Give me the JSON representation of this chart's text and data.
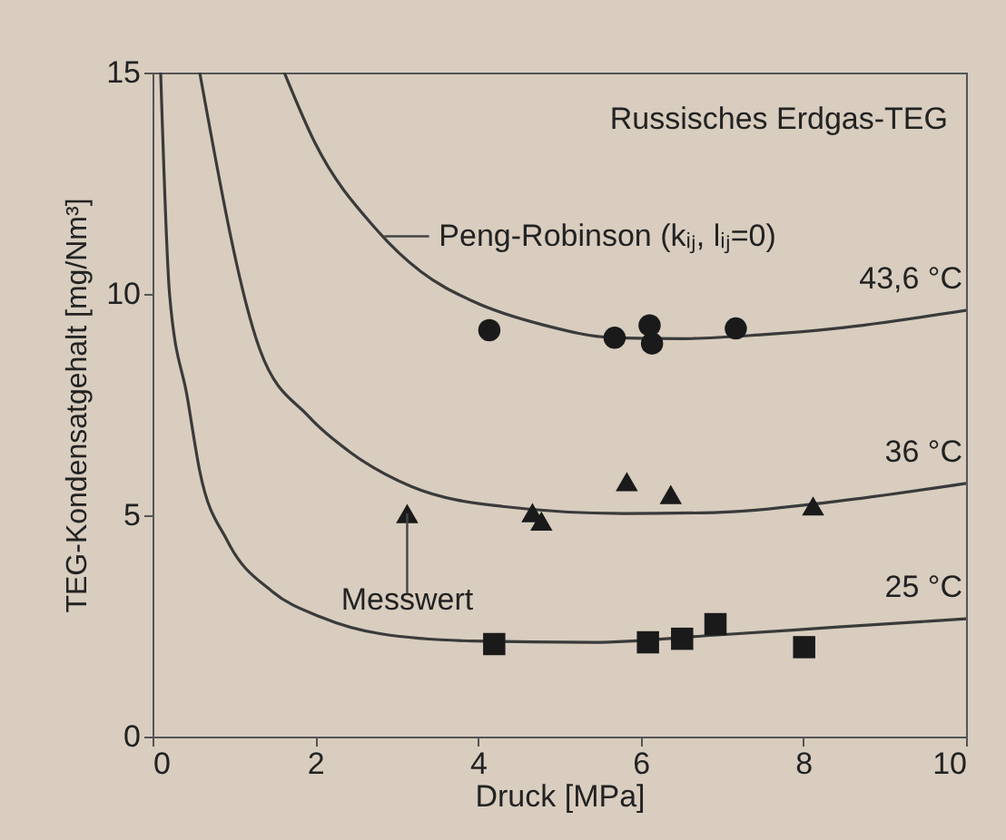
{
  "chart_data": {
    "type": "line",
    "xlabel": "Druck [MPa]",
    "ylabel": "TEG-Kondensatgehalt [mg/Nm³]",
    "xlim": [
      0,
      10
    ],
    "ylim": [
      0,
      15
    ],
    "xticks": [
      0,
      2,
      4,
      6,
      8,
      10
    ],
    "yticks": [
      0,
      5,
      10,
      15
    ],
    "grid": false,
    "line_style": "solid",
    "annotations": [
      "Russisches Erdgas-TEG",
      {
        "text": "Peng-Robinson (kᵢⱼ, lᵢⱼ=0)",
        "x": 2.85,
        "y": 11.3
      },
      {
        "text": "Messwert",
        "x": 3.13,
        "y": 5.04
      }
    ],
    "series": [
      {
        "name": "43,6 °C",
        "color": "#3a3a3a",
        "marker": "none",
        "x": [
          1.62,
          2.0,
          2.74,
          3.3,
          3.93,
          4.8,
          5.68,
          6.53,
          7.5,
          8.39,
          10
        ],
        "values": [
          15,
          13.4,
          11.48,
          10.5,
          9.84,
          9.3,
          9.01,
          8.99,
          9.08,
          9.22,
          9.63
        ]
      },
      {
        "name": "36 °C",
        "color": "#3a3a3a",
        "marker": "none",
        "x": [
          0.58,
          1.32,
          1.92,
          2.44,
          3.18,
          4.3,
          5.79,
          6.9,
          8.39,
          10
        ],
        "values": [
          15,
          8.74,
          7.23,
          6.41,
          5.65,
          5.2,
          5.04,
          5.06,
          5.31,
          5.72
        ]
      },
      {
        "name": "25 °C",
        "color": "#3a3a3a",
        "marker": "none",
        "x": [
          0.1,
          0.21,
          0.43,
          0.58,
          0.92,
          1.47,
          2.07,
          2.81,
          3.93,
          5.42,
          6.9,
          8.39,
          10
        ],
        "values": [
          15,
          9.98,
          7.64,
          6.0,
          4.42,
          3.28,
          2.7,
          2.32,
          2.16,
          2.13,
          2.29,
          2.47,
          2.66
        ]
      },
      {
        "type": "scatter",
        "color": "#1a1a1a",
        "marker": "circle",
        "x": [
          4.14,
          5.68,
          6.11,
          6.14,
          7.17
        ],
        "values": [
          9.18,
          9.01,
          9.29,
          8.88,
          9.22
        ]
      },
      {
        "type": "scatter",
        "color": "#1a1a1a",
        "marker": "triangle",
        "x": [
          3.13,
          4.67,
          4.78,
          5.83,
          6.37,
          8.12
        ],
        "values": [
          5.04,
          5.06,
          4.87,
          5.76,
          5.47,
          5.21
        ]
      },
      {
        "type": "scatter",
        "color": "#1a1a1a",
        "marker": "square",
        "x": [
          4.2,
          6.09,
          6.51,
          6.92,
          8.01
        ],
        "values": [
          2.09,
          2.13,
          2.21,
          2.54,
          2.02
        ]
      }
    ]
  }
}
